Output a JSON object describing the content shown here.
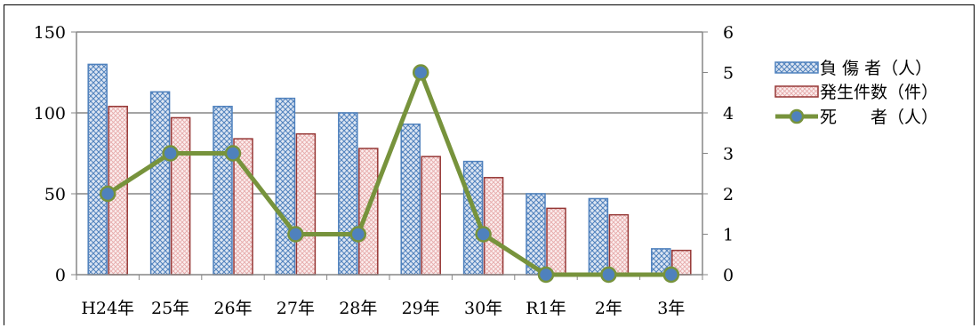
{
  "chart_data": {
    "type": "bar",
    "categories": [
      "H24年",
      "25年",
      "26年",
      "27年",
      "28年",
      "29年",
      "30年",
      "R1年",
      "2年",
      "3年"
    ],
    "series": [
      {
        "name": "負 傷 者（人）",
        "type": "bar",
        "axis": "left",
        "values": [
          130,
          113,
          104,
          109,
          100,
          93,
          70,
          50,
          47,
          16
        ]
      },
      {
        "name": "発生件数（件）",
        "type": "bar",
        "axis": "left",
        "values": [
          104,
          97,
          84,
          87,
          78,
          73,
          60,
          41,
          37,
          15
        ]
      },
      {
        "name": "死　　者（人）",
        "type": "line",
        "axis": "right",
        "values": [
          2,
          3,
          3,
          1,
          1,
          5,
          1,
          0,
          0,
          0
        ]
      }
    ],
    "ylim": [
      0,
      150
    ],
    "yticks": [
      0,
      50,
      100,
      150
    ],
    "y2lim": [
      0,
      6
    ],
    "y2ticks": [
      0,
      1,
      2,
      3,
      4,
      5,
      6
    ],
    "grid": true,
    "legend_position": "right",
    "colors": {
      "injured_fill": "#c7d3e8",
      "injured_stroke": "#4f81bd",
      "incidents_fill": "#f4dede",
      "incidents_stroke": "#953735",
      "deaths_line": "#77933c",
      "deaths_marker": "#4f81bd"
    }
  }
}
